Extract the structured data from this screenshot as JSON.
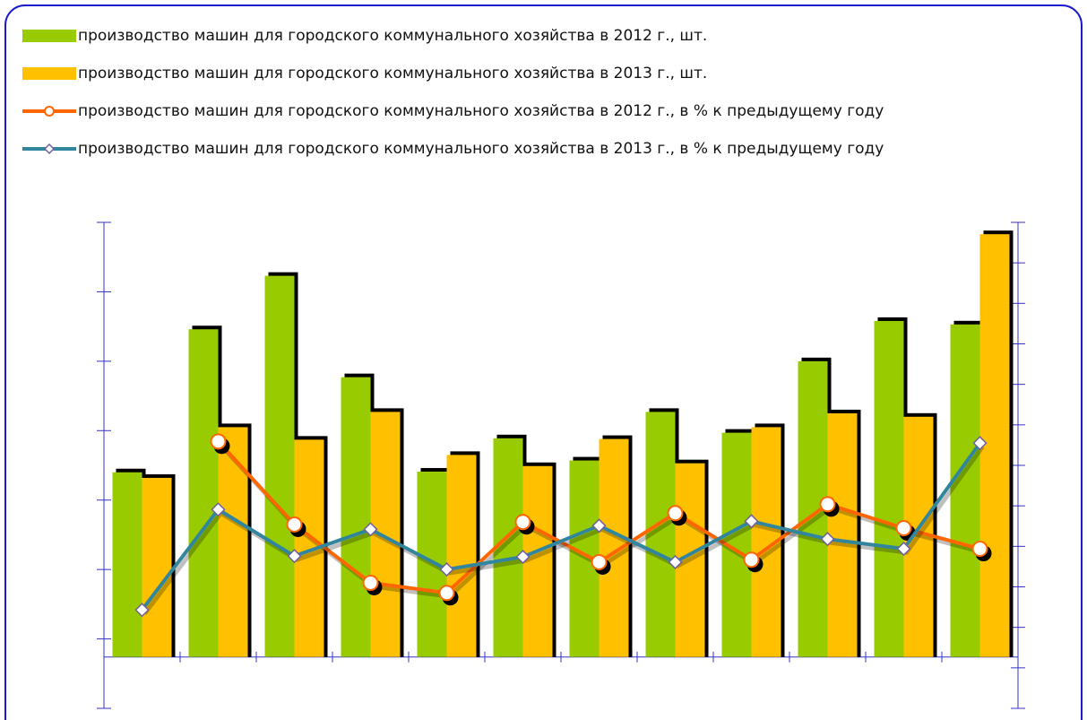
{
  "chart_data": {
    "type": "bar-line",
    "categories": [
      null,
      null,
      null,
      null,
      null,
      null,
      null,
      null,
      null,
      null,
      null,
      null
    ],
    "series": [
      {
        "name": "производство машин для городского коммунального хозяйства в 2012 г., шт.",
        "type": "bar",
        "color": "#99cc00",
        "values": [
          266,
          472,
          549,
          403,
          267,
          315,
          283,
          353,
          323,
          426,
          484,
          479
        ]
      },
      {
        "name": "производство машин для городского коммунального хозяйства в 2013 г., шт.",
        "type": "bar",
        "color": "#ffc000",
        "values": [
          258,
          331,
          313,
          353,
          291,
          275,
          314,
          279,
          331,
          351,
          346,
          609
        ]
      },
      {
        "name": "производство машин для городского коммунального хозяйства в 2012 г., в % к предыдущему году",
        "type": "line",
        "axis": "y2",
        "color": "#ff6600",
        "marker": "circle",
        "values": [
          null,
          65.9,
          45.4,
          31.0,
          28.5,
          46.0,
          36.1,
          48.2,
          36.7,
          50.4,
          44.5,
          39.4
        ]
      },
      {
        "name": "производство машин для городского коммунального хозяйства в 2013 г., в % к предыдущему году",
        "type": "line",
        "axis": "y2",
        "color": "#31859c",
        "marker": "diamond",
        "values": [
          24.3,
          49.1,
          37.6,
          44.2,
          34.3,
          37.4,
          45.1,
          36.1,
          46.2,
          41.8,
          39.4,
          65.5
        ]
      }
    ],
    "ylim": [
      -74,
      626
    ],
    "yticks": [
      -74,
      26,
      126,
      226,
      326,
      426,
      526,
      626
    ],
    "y2lim": [
      0,
      120
    ],
    "y2ticks": [
      0,
      10,
      20,
      30,
      40,
      50,
      60,
      70,
      80,
      90,
      100,
      110,
      120
    ],
    "axis_color": "#3333cc"
  }
}
